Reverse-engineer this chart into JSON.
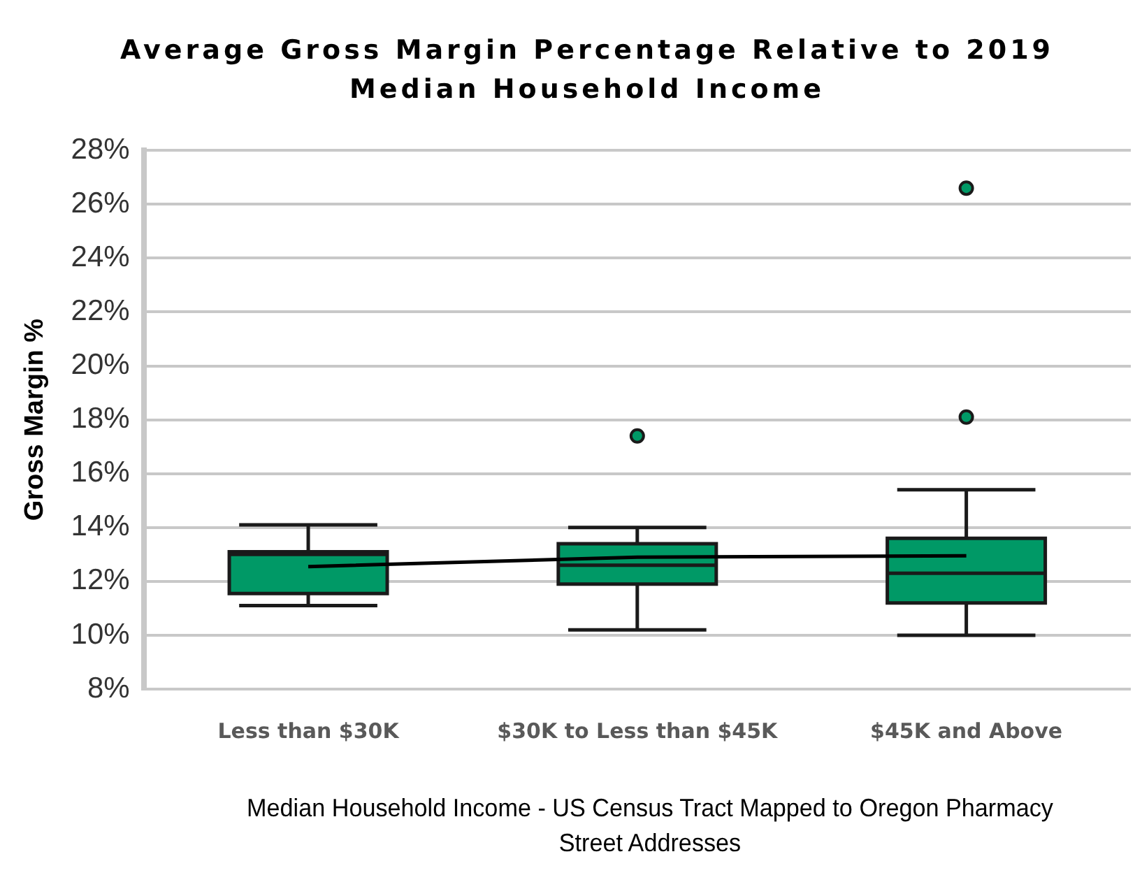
{
  "chart_data": {
    "type": "box",
    "title": "Average Gross Margin Percentage Relative to 2019 Median Household Income",
    "xlabel": "Median Household Income - US Census Tract Mapped to Oregon Pharmacy Street Addresses",
    "ylabel": "Gross Margin %",
    "categories": [
      "Less than $30K",
      "$30K to Less than $45K",
      "$45K and Above"
    ],
    "ylim": [
      8,
      28
    ],
    "yticks": [
      {
        "value": 8,
        "label": "8%"
      },
      {
        "value": 10,
        "label": "10%"
      },
      {
        "value": 12,
        "label": "12%"
      },
      {
        "value": 14,
        "label": "14%"
      },
      {
        "value": 16,
        "label": "16%"
      },
      {
        "value": 18,
        "label": "18%"
      },
      {
        "value": 20,
        "label": "20%"
      },
      {
        "value": 22,
        "label": "22%"
      },
      {
        "value": 24,
        "label": "24%"
      },
      {
        "value": 26,
        "label": "26%"
      },
      {
        "value": 28,
        "label": "28%"
      }
    ],
    "grid": "y",
    "series": [
      {
        "color": "#009966",
        "boxes": [
          {
            "low": 11.1,
            "q1": 11.55,
            "median": 13.0,
            "q3": 13.1,
            "high": 14.1
          },
          {
            "low": 10.2,
            "q1": 11.9,
            "median": 12.6,
            "q3": 13.4,
            "high": 14.0,
            "outliers": [
              17.4
            ]
          },
          {
            "low": 10.0,
            "q1": 11.2,
            "median": 12.3,
            "q3": 13.6,
            "high": 15.4,
            "outliers": [
              18.1,
              26.6
            ]
          }
        ]
      },
      {
        "type": "line",
        "color": "#000000",
        "values": [
          12.55,
          12.9,
          12.95
        ]
      }
    ]
  }
}
